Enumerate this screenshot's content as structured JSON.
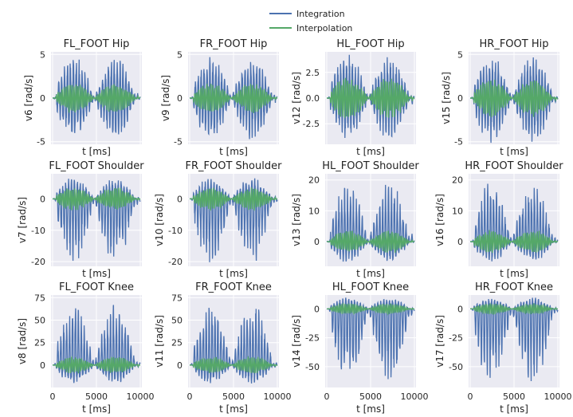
{
  "legend": {
    "integration": "Integration",
    "interpolation": "Interpolation"
  },
  "colors": {
    "integration": "#4c72b0",
    "interpolation": "#55a868",
    "panel_bg": "#eaeaf2",
    "grid": "#ffffff"
  },
  "chart_data": {
    "type": "line",
    "series_names": [
      "Integration",
      "Interpolation"
    ],
    "legend_position": "top-center",
    "grid": true,
    "xlabel": "t [ms]",
    "x_range": [
      0,
      10000
    ],
    "x_ticks": [
      0,
      5000,
      10000
    ],
    "x_tick_labels": [
      "0",
      "5000",
      "10000"
    ],
    "panels": [
      {
        "title": "FL_FOOT Hip",
        "ylabel": "v6 [rad/s]",
        "yticks": [
          -5,
          0,
          5
        ],
        "ylim": [
          -5.3,
          5.3
        ],
        "integration_envelope": [
          -5,
          5
        ],
        "interpolation_envelope": [
          -1.8,
          1.8
        ]
      },
      {
        "title": "FR_FOOT Hip",
        "ylabel": "v9 [rad/s]",
        "yticks": [
          -5,
          0,
          5
        ],
        "ylim": [
          -5.3,
          5.3
        ],
        "integration_envelope": [
          -5,
          5
        ],
        "interpolation_envelope": [
          -1.8,
          1.8
        ]
      },
      {
        "title": "HL_FOOT Hip",
        "ylabel": "v12 [rad/s]",
        "yticks": [
          -2.5,
          0.0,
          2.5
        ],
        "ylim": [
          -4.5,
          4.5
        ],
        "integration_envelope": [
          -4.2,
          4.5
        ],
        "interpolation_envelope": [
          -2.2,
          2.2
        ]
      },
      {
        "title": "HR_FOOT Hip",
        "ylabel": "v15 [rad/s]",
        "yticks": [
          -5,
          0,
          5
        ],
        "ylim": [
          -5.3,
          5.3
        ],
        "integration_envelope": [
          -5.3,
          5.2
        ],
        "interpolation_envelope": [
          -2.3,
          2.3
        ]
      },
      {
        "title": "FL_FOOT Shoulder",
        "ylabel": "v7 [rad/s]",
        "yticks": [
          -20,
          -10,
          0
        ],
        "ylim": [
          -21.5,
          8
        ],
        "integration_envelope": [
          -21,
          7
        ],
        "interpolation_envelope": [
          -4,
          4
        ]
      },
      {
        "title": "FR_FOOT Shoulder",
        "ylabel": "v10 [rad/s]",
        "yticks": [
          -20,
          -10,
          0
        ],
        "ylim": [
          -21.5,
          8
        ],
        "integration_envelope": [
          -21,
          7
        ],
        "interpolation_envelope": [
          -4,
          4
        ]
      },
      {
        "title": "HL_FOOT Shoulder",
        "ylabel": "v13 [rad/s]",
        "yticks": [
          0,
          10,
          20
        ],
        "ylim": [
          -8,
          22
        ],
        "integration_envelope": [
          -7,
          20
        ],
        "interpolation_envelope": [
          -4,
          4
        ]
      },
      {
        "title": "HR_FOOT Shoulder",
        "ylabel": "v16 [rad/s]",
        "yticks": [
          0,
          10,
          20
        ],
        "ylim": [
          -8,
          22
        ],
        "integration_envelope": [
          -7,
          20
        ],
        "interpolation_envelope": [
          -4,
          4
        ]
      },
      {
        "title": "FL_FOOT Knee",
        "ylabel": "v8 [rad/s]",
        "yticks": [
          0,
          25,
          50,
          75
        ],
        "ylim": [
          -25,
          78
        ],
        "integration_envelope": [
          -22,
          72
        ],
        "interpolation_envelope": [
          -10,
          10
        ]
      },
      {
        "title": "FR_FOOT Knee",
        "ylabel": "v11 [rad/s]",
        "yticks": [
          0,
          25,
          50,
          75
        ],
        "ylim": [
          -25,
          78
        ],
        "integration_envelope": [
          -22,
          72
        ],
        "interpolation_envelope": [
          -10,
          10
        ]
      },
      {
        "title": "HL_FOOT Knee",
        "ylabel": "v14 [rad/s]",
        "yticks": [
          0,
          -25,
          -50
        ],
        "ylim": [
          -68,
          12
        ],
        "integration_envelope": [
          -67,
          10
        ],
        "interpolation_envelope": [
          -5,
          5
        ]
      },
      {
        "title": "HR_FOOT Knee",
        "ylabel": "v17 [rad/s]",
        "yticks": [
          0,
          -25,
          -50
        ],
        "ylim": [
          -68,
          12
        ],
        "integration_envelope": [
          -67,
          10
        ],
        "interpolation_envelope": [
          -5,
          5
        ]
      }
    ]
  }
}
